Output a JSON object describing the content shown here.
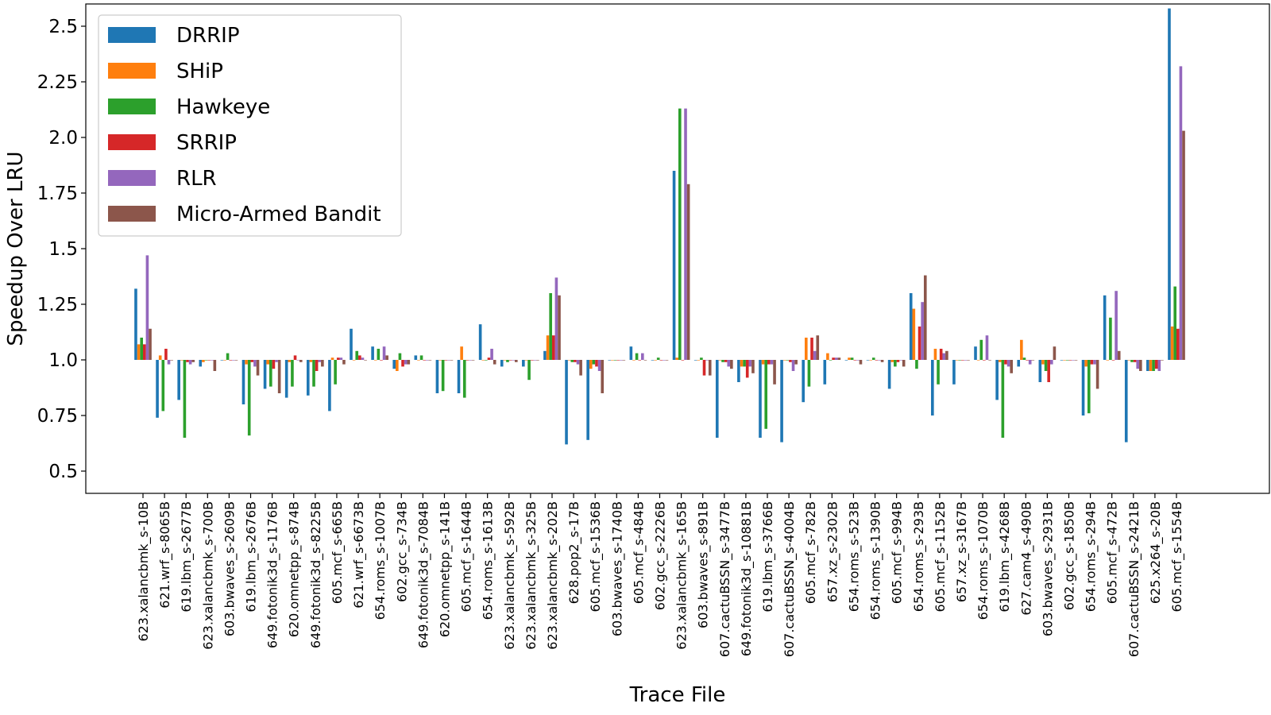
{
  "chart_data": {
    "type": "bar",
    "xlabel": "Trace File",
    "ylabel": "Speedup Over LRU",
    "baseline": 1.0,
    "ylim": [
      0.4,
      2.6
    ],
    "yticks": [
      0.5,
      0.75,
      1.0,
      1.25,
      1.5,
      1.75,
      2.0,
      2.25,
      2.5
    ],
    "ytick_labels": [
      "0.5",
      "0.75",
      "1.0",
      "1.25",
      "1.5",
      "1.75",
      "2.0",
      "2.25",
      "2.5"
    ],
    "legend_position": "top-left",
    "grid": false,
    "categories": [
      "623.xalancbmk_s-10B",
      "621.wrf_s-8065B",
      "619.lbm_s-2677B",
      "623.xalancbmk_s-700B",
      "603.bwaves_s-2609B",
      "619.lbm_s-2676B",
      "649.fotonik3d_s-1176B",
      "620.omnetpp_s-874B",
      "649.fotonik3d_s-8225B",
      "605.mcf_s-665B",
      "621.wrf_s-6673B",
      "654.roms_s-1007B",
      "602.gcc_s-734B",
      "649.fotonik3d_s-7084B",
      "620.omnetpp_s-141B",
      "605.mcf_s-1644B",
      "654.roms_s-1613B",
      "623.xalancbmk_s-592B",
      "623.xalancbmk_s-325B",
      "623.xalancbmk_s-202B",
      "628.pop2_s-17B",
      "605.mcf_s-1536B",
      "603.bwaves_s-1740B",
      "605.mcf_s-484B",
      "602.gcc_s-2226B",
      "623.xalancbmk_s-165B",
      "603.bwaves_s-891B",
      "607.cactuBSSN_s-3477B",
      "649.fotonik3d_s-10881B",
      "619.lbm_s-3766B",
      "607.cactuBSSN_s-4004B",
      "605.mcf_s-782B",
      "657.xz_s-2302B",
      "654.roms_s-523B",
      "654.roms_s-1390B",
      "605.mcf_s-994B",
      "654.roms_s-293B",
      "605.mcf_s-1152B",
      "657.xz_s-3167B",
      "654.roms_s-1070B",
      "619.lbm_s-4268B",
      "627.cam4_s-490B",
      "603.bwaves_s-2931B",
      "602.gcc_s-1850B",
      "654.roms_s-294B",
      "605.mcf_s-472B",
      "607.cactuBSSN_s-2421B",
      "625.x264_s-20B",
      "605.mcf_s-1554B"
    ],
    "series": [
      {
        "name": "DRRIP",
        "color": "#1f77b4",
        "values": [
          1.32,
          0.74,
          0.82,
          0.97,
          1.0,
          0.8,
          0.87,
          0.83,
          0.84,
          0.77,
          1.14,
          1.06,
          0.96,
          1.02,
          0.85,
          0.85,
          1.16,
          0.97,
          0.97,
          1.04,
          0.62,
          0.64,
          1.0,
          1.06,
          1.0,
          1.85,
          1.0,
          0.65,
          0.9,
          0.65,
          0.63,
          0.81,
          0.89,
          1.0,
          1.0,
          0.87,
          1.3,
          0.75,
          0.89,
          1.06,
          0.82,
          0.97,
          0.9,
          1.0,
          0.75,
          1.29,
          0.63,
          0.95,
          2.58
        ]
      },
      {
        "name": "SHiP",
        "color": "#ff7f0e",
        "values": [
          1.07,
          1.02,
          1.0,
          0.99,
          1.0,
          0.98,
          0.98,
          0.99,
          0.99,
          1.01,
          1.0,
          1.0,
          0.95,
          1.0,
          1.0,
          1.06,
          1.0,
          1.0,
          1.0,
          1.11,
          1.0,
          0.96,
          1.0,
          1.0,
          1.0,
          1.01,
          1.0,
          1.0,
          0.97,
          0.98,
          1.0,
          1.1,
          1.03,
          1.01,
          1.0,
          0.99,
          1.23,
          1.05,
          1.0,
          1.0,
          0.99,
          1.09,
          0.98,
          1.0,
          0.97,
          1.0,
          1.0,
          0.95,
          1.15
        ]
      },
      {
        "name": "Hawkeye",
        "color": "#2ca02c",
        "values": [
          1.1,
          0.77,
          0.65,
          1.0,
          1.03,
          0.66,
          0.88,
          0.88,
          0.88,
          0.89,
          1.04,
          1.05,
          1.03,
          1.02,
          0.86,
          0.83,
          1.0,
          0.99,
          0.91,
          1.3,
          0.99,
          0.98,
          1.0,
          1.03,
          1.01,
          2.13,
          1.01,
          0.99,
          0.97,
          0.69,
          1.0,
          0.88,
          1.0,
          1.01,
          1.01,
          0.97,
          0.96,
          0.89,
          1.0,
          1.09,
          0.65,
          1.01,
          0.95,
          1.0,
          0.76,
          1.19,
          0.99,
          0.95,
          1.33
        ]
      },
      {
        "name": "SRRIP",
        "color": "#d62728",
        "values": [
          1.07,
          1.05,
          0.99,
          1.0,
          1.0,
          0.99,
          0.96,
          1.02,
          0.95,
          1.01,
          1.02,
          1.0,
          0.97,
          1.0,
          1.0,
          1.0,
          1.01,
          1.0,
          1.0,
          1.11,
          0.99,
          0.97,
          1.0,
          1.0,
          1.0,
          1.0,
          0.93,
          0.99,
          0.92,
          0.98,
          0.99,
          1.1,
          1.01,
          1.0,
          1.0,
          0.99,
          1.15,
          1.05,
          1.0,
          1.0,
          0.98,
          1.0,
          0.9,
          1.0,
          0.98,
          1.0,
          0.99,
          0.96,
          1.14
        ]
      },
      {
        "name": "RLR",
        "color": "#9467bd",
        "values": [
          1.47,
          0.98,
          0.98,
          1.0,
          1.0,
          0.97,
          0.99,
          1.0,
          0.99,
          1.01,
          1.01,
          1.06,
          0.98,
          1.0,
          1.0,
          1.0,
          1.05,
          1.0,
          1.0,
          1.37,
          0.98,
          0.95,
          1.0,
          1.03,
          1.0,
          2.13,
          1.0,
          0.97,
          0.97,
          0.98,
          0.95,
          1.04,
          1.01,
          1.0,
          1.0,
          1.0,
          1.26,
          1.03,
          1.0,
          1.11,
          0.97,
          0.98,
          0.98,
          1.0,
          0.98,
          1.31,
          0.96,
          0.95,
          2.32
        ]
      },
      {
        "name": "Micro-Armed Bandit",
        "color": "#8c564b",
        "values": [
          1.14,
          1.0,
          0.99,
          0.95,
          1.0,
          0.93,
          0.85,
          0.99,
          0.97,
          0.98,
          1.0,
          1.02,
          0.98,
          1.0,
          1.0,
          1.0,
          0.98,
          0.99,
          1.0,
          1.29,
          0.93,
          0.85,
          1.0,
          1.0,
          1.0,
          1.79,
          0.93,
          0.96,
          0.94,
          0.89,
          0.98,
          1.11,
          1.01,
          0.98,
          0.99,
          0.97,
          1.38,
          1.04,
          1.0,
          1.0,
          0.94,
          1.0,
          1.06,
          1.0,
          0.87,
          1.04,
          0.95,
          1.0,
          2.03
        ]
      }
    ]
  }
}
